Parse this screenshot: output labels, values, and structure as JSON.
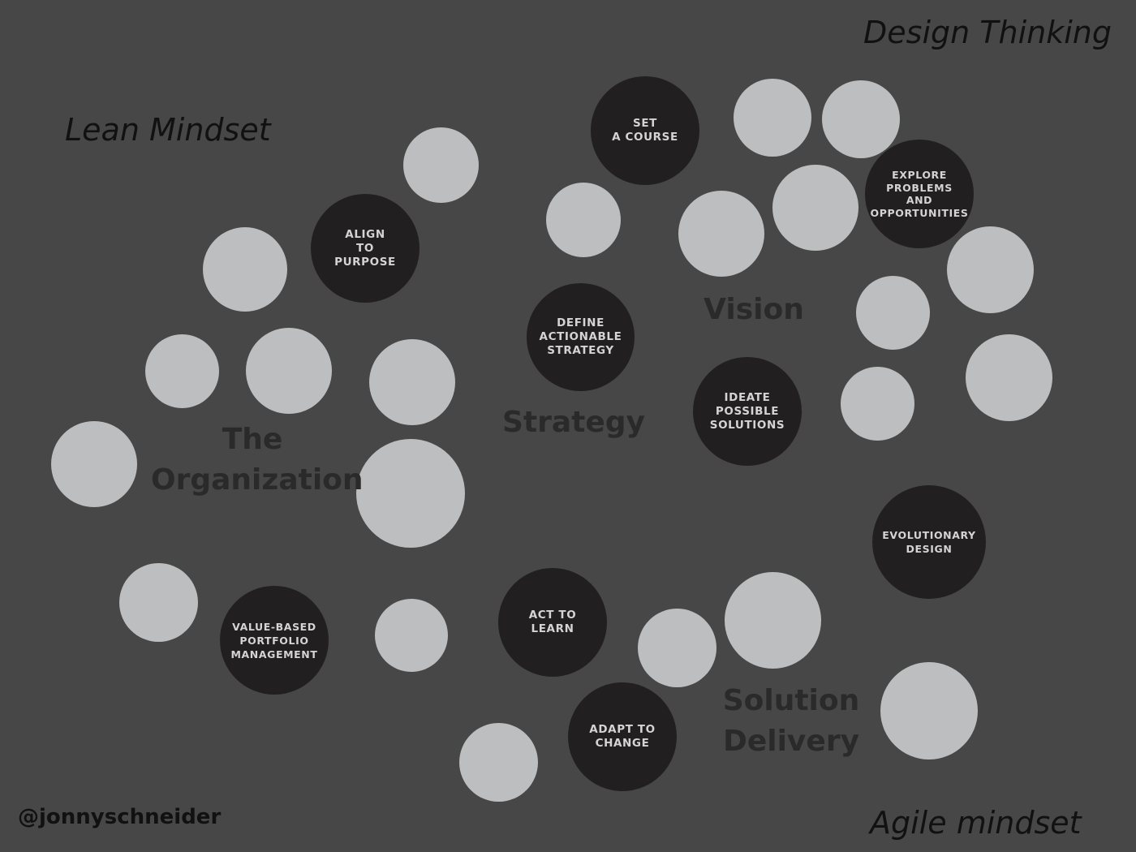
{
  "mindsets": {
    "lean": "Lean Mindset",
    "design": "Design Thinking",
    "agile": "Agile mindset"
  },
  "regions": {
    "organization": "The\nOrganization",
    "strategy": "Strategy",
    "vision": "Vision",
    "solution_delivery": "Solution\nDelivery"
  },
  "practices": {
    "align_to_purpose": "ALIGN\nTO\nPURPOSE",
    "set_a_course": "SET\nA COURSE",
    "explore_problems": "EXPLORE\nPROBLEMS\nAND\nOPPORTUNITIES",
    "define_strategy": "DEFINE\nACTIONABLE\nSTRATEGY",
    "ideate_solutions": "IDEATE\nPOSSIBLE\nSOLUTIONS",
    "evolutionary_design": "EVOLUTIONARY\nDESIGN",
    "value_based_portfolio": "VALUE-BASED\nPORTFOLIO\nMANAGEMENT",
    "act_to_learn": "ACT TO\nLEARN",
    "adapt_to_change": "ADAPT TO\nCHANGE"
  },
  "credit": "@jonnyschneider",
  "colors": {
    "background": "#474747",
    "light_circle": "#bdbebf",
    "dark_circle": "#221f20",
    "region_text": "#2a2a2a",
    "practice_text": "#d4d4d4"
  }
}
